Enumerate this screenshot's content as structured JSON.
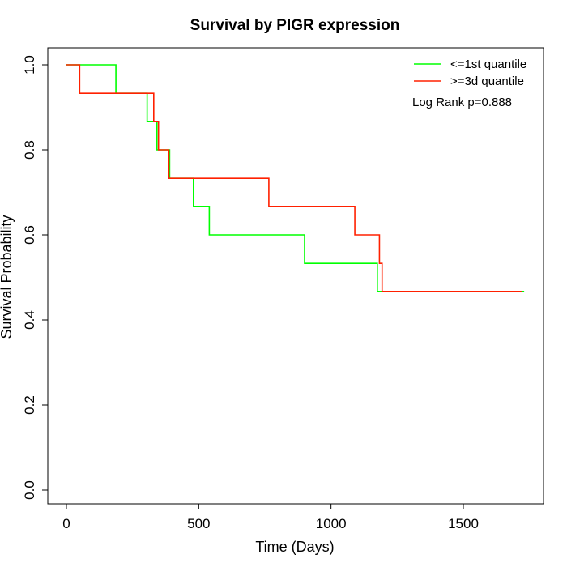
{
  "chart_data": {
    "type": "line",
    "title": "Survival by PIGR expression",
    "xlabel": "Time (Days)",
    "ylabel": "Survival Probability",
    "xlim": [
      0,
      1730
    ],
    "ylim": [
      0,
      1
    ],
    "x_ticks": [
      0,
      500,
      1000,
      1500
    ],
    "x_tick_labels": [
      "0",
      "500",
      "1000",
      "1500"
    ],
    "y_ticks": [
      0,
      0.2,
      0.4,
      0.6,
      0.8,
      1.0
    ],
    "y_tick_labels": [
      "0.0",
      "0.2",
      "0.4",
      "0.6",
      "0.8",
      "1.0"
    ],
    "grid": false,
    "legend_position": "top-right",
    "annotation": "Log Rank p=0.888",
    "series": [
      {
        "name": "<=1st quantile",
        "color": "#00ff00",
        "step": true,
        "x": [
          0,
          187,
          305,
          342,
          390,
          480,
          540,
          900,
          1175,
          1730
        ],
        "y": [
          1.0,
          0.933,
          0.867,
          0.8,
          0.733,
          0.667,
          0.6,
          0.533,
          0.467,
          0.467
        ]
      },
      {
        "name": ">=3d quantile",
        "color": "#ff2000",
        "step": true,
        "x": [
          0,
          50,
          330,
          348,
          387,
          765,
          1090,
          1183,
          1193,
          1720
        ],
        "y": [
          1.0,
          0.933,
          0.867,
          0.8,
          0.733,
          0.667,
          0.6,
          0.533,
          0.467,
          0.467
        ]
      }
    ]
  }
}
